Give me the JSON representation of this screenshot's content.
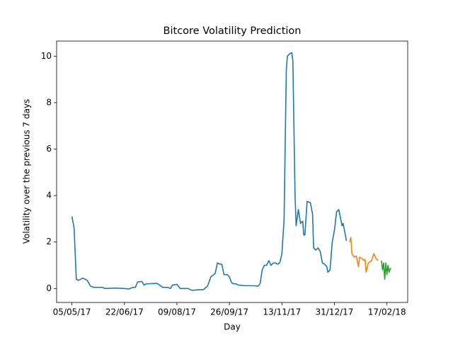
{
  "chart_data": {
    "type": "line",
    "title": "Bitcore Volatility Prediction",
    "x_label": "Day",
    "y_label": "Volatility over the previous 7 days",
    "xlim": [
      "21/04/17",
      "08/03/18"
    ],
    "xticks": [
      "05/05/17",
      "22/06/17",
      "09/08/17",
      "26/09/17",
      "13/11/17",
      "31/12/17",
      "17/02/18"
    ],
    "ylim": [
      -0.6,
      10.65
    ],
    "yticks": [
      0,
      2,
      4,
      6,
      8,
      10
    ],
    "grid": false,
    "series": [
      {
        "color": "#1f77b4",
        "x": [
          "05/05/17",
          "07/05/17",
          "09/05/17",
          "11/05/17",
          "15/05/17",
          "19/05/17",
          "22/05/17",
          "25/05/17",
          "02/06/17",
          "04/06/17",
          "14/06/17",
          "22/06/17",
          "26/06/17",
          "30/06/17",
          "02/07/17",
          "04/07/17",
          "08/07/17",
          "10/07/17",
          "12/07/17",
          "22/07/17",
          "24/07/17",
          "27/07/17",
          "01/08/17",
          "03/08/17",
          "05/08/17",
          "09/08/17",
          "12/08/17",
          "19/08/17",
          "23/08/17",
          "29/08/17",
          "02/09/17",
          "06/09/17",
          "09/09/17",
          "13/09/17",
          "15/09/17",
          "17/09/17",
          "19/09/17",
          "21/09/17",
          "24/09/17",
          "26/09/17",
          "28/09/17",
          "30/09/17",
          "02/10/17",
          "04/10/17",
          "10/10/17",
          "18/10/17",
          "22/10/17",
          "24/10/17",
          "26/10/17",
          "28/10/17",
          "30/10/17",
          "01/11/17",
          "03/11/17",
          "05/11/17",
          "07/11/17",
          "09/11/17",
          "11/11/17",
          "13/11/17",
          "15/11/17",
          "17/11/17",
          "18/11/17",
          "20/11/17",
          "22/11/17",
          "23/11/17",
          "25/11/17",
          "26/11/17",
          "28/11/17",
          "30/11/17",
          "02/12/17",
          "03/12/17",
          "04/12/17",
          "06/12/17",
          "09/12/17",
          "11/12/17",
          "12/12/17",
          "14/12/17",
          "16/12/17",
          "18/12/17",
          "20/12/17",
          "22/12/17",
          "24/12/17",
          "25/12/17",
          "27/12/17",
          "29/12/17",
          "31/12/17",
          "02/01/18",
          "04/01/18",
          "07/01/18",
          "08/01/18",
          "11/01/18"
        ],
        "values": [
          3.1,
          2.6,
          0.4,
          0.35,
          0.45,
          0.35,
          0.1,
          0.05,
          0.05,
          0.0,
          0.02,
          0.0,
          -0.02,
          0.05,
          0.05,
          0.28,
          0.3,
          0.15,
          0.2,
          0.22,
          0.15,
          0.05,
          0.05,
          0.0,
          0.15,
          0.18,
          0.0,
          0.0,
          -0.08,
          -0.05,
          -0.05,
          0.1,
          0.5,
          0.65,
          1.1,
          1.05,
          1.05,
          0.6,
          0.6,
          0.5,
          0.25,
          0.2,
          0.2,
          0.15,
          0.12,
          0.12,
          0.1,
          0.2,
          0.8,
          1.0,
          1.0,
          1.2,
          1.0,
          1.1,
          1.1,
          1.05,
          1.1,
          1.5,
          3.0,
          9.4,
          10.0,
          10.1,
          10.15,
          9.8,
          4.0,
          2.7,
          3.4,
          2.8,
          2.9,
          2.3,
          2.3,
          3.75,
          3.7,
          3.2,
          1.75,
          1.65,
          1.75,
          1.6,
          1.1,
          1.05,
          0.95,
          0.7,
          0.8,
          2.0,
          2.5,
          3.3,
          3.4,
          2.7,
          2.8,
          2.05
        ]
      },
      {
        "color": "#ff7f0e",
        "x": [
          "14/01/18",
          "15/01/18",
          "16/01/18",
          "18/01/18",
          "20/01/18",
          "22/01/18",
          "23/01/18",
          "25/01/18",
          "27/01/18",
          "28/01/18",
          "29/01/18",
          "31/01/18",
          "03/02/18",
          "05/02/18",
          "07/02/18",
          "09/02/18"
        ],
        "values": [
          2.0,
          2.2,
          1.5,
          1.35,
          1.4,
          0.95,
          1.35,
          1.3,
          1.2,
          1.25,
          0.7,
          1.1,
          1.2,
          1.5,
          1.3,
          1.2
        ]
      },
      {
        "color": "#2ca02c",
        "x": [
          "12/02/18",
          "13/02/18",
          "14/02/18",
          "15/02/18",
          "16/02/18",
          "17/02/18",
          "18/02/18",
          "19/02/18",
          "20/02/18",
          "21/02/18"
        ],
        "values": [
          1.2,
          0.8,
          1.1,
          0.4,
          1.1,
          0.6,
          1.0,
          0.7,
          0.85,
          0.85
        ]
      }
    ]
  }
}
